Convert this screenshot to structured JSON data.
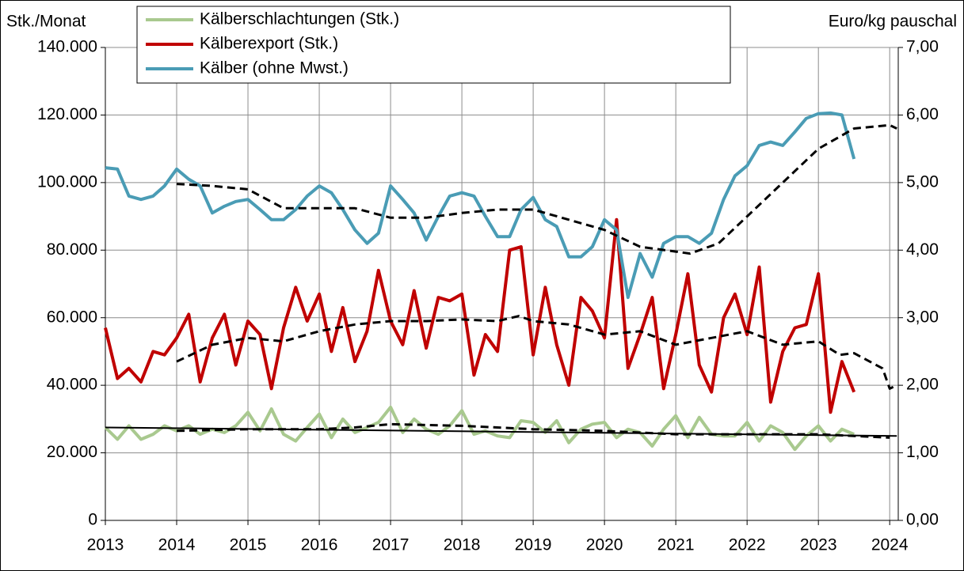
{
  "chart_data": {
    "type": "line",
    "y_label": "Stk./Monat",
    "y2_label": "Euro/kg pauschal",
    "xlim": [
      2013,
      2024.12
    ],
    "xticks": [
      2013,
      2014,
      2015,
      2016,
      2017,
      2018,
      2019,
      2020,
      2021,
      2022,
      2023,
      2024
    ],
    "ylim": [
      0,
      140000
    ],
    "yticks": [
      {
        "value": 0,
        "label": "0"
      },
      {
        "value": 20000,
        "label": "20.000"
      },
      {
        "value": 40000,
        "label": "40.000"
      },
      {
        "value": 60000,
        "label": "60.000"
      },
      {
        "value": 80000,
        "label": "80.000"
      },
      {
        "value": 100000,
        "label": "100.000"
      },
      {
        "value": 120000,
        "label": "120.000"
      },
      {
        "value": 140000,
        "label": "140.000"
      }
    ],
    "y2lim": [
      0,
      7
    ],
    "y2ticks": [
      {
        "value": 0,
        "label": "0,00"
      },
      {
        "value": 1,
        "label": "1,00"
      },
      {
        "value": 2,
        "label": "2,00"
      },
      {
        "value": 3,
        "label": "3,00"
      },
      {
        "value": 4,
        "label": "4,00"
      },
      {
        "value": 5,
        "label": "5,00"
      },
      {
        "value": 6,
        "label": "6,00"
      },
      {
        "value": 7,
        "label": "7,00"
      }
    ],
    "grid": true,
    "legend": "top",
    "x": [
      2013.0,
      2013.17,
      2013.33,
      2013.5,
      2013.67,
      2013.83,
      2014.0,
      2014.17,
      2014.33,
      2014.5,
      2014.67,
      2014.83,
      2015.0,
      2015.17,
      2015.33,
      2015.5,
      2015.67,
      2015.83,
      2016.0,
      2016.17,
      2016.33,
      2016.5,
      2016.67,
      2016.83,
      2017.0,
      2017.17,
      2017.33,
      2017.5,
      2017.67,
      2017.83,
      2018.0,
      2018.17,
      2018.33,
      2018.5,
      2018.67,
      2018.83,
      2019.0,
      2019.17,
      2019.33,
      2019.5,
      2019.67,
      2019.83,
      2020.0,
      2020.17,
      2020.33,
      2020.5,
      2020.67,
      2020.83,
      2021.0,
      2021.17,
      2021.33,
      2021.5,
      2021.67,
      2021.83,
      2022.0,
      2022.17,
      2022.33,
      2022.5,
      2022.67,
      2022.83,
      2023.0,
      2023.17,
      2023.33,
      2023.5
    ],
    "series": [
      {
        "name": "Kälberschlachtungen (Stk.)",
        "color": "#a9c98f",
        "values": [
          27500,
          24000,
          28000,
          24000,
          25500,
          28000,
          26500,
          28000,
          25500,
          27000,
          26000,
          28000,
          32000,
          26500,
          33000,
          25500,
          23500,
          27500,
          31500,
          24500,
          30000,
          26000,
          27500,
          29000,
          33500,
          26000,
          30000,
          27000,
          25500,
          28000,
          32500,
          25500,
          26500,
          25000,
          24500,
          29500,
          29000,
          26000,
          29500,
          23000,
          27000,
          28500,
          29000,
          24500,
          27000,
          26000,
          22000,
          27000,
          31000,
          24500,
          30500,
          25500,
          25000,
          25000,
          29000,
          23500,
          28000,
          26000,
          21000,
          25000,
          28000,
          23500,
          27000,
          25500
        ]
      },
      {
        "name": "Kälberexport (Stk.)",
        "color": "#c00000",
        "values": [
          57000,
          42000,
          45000,
          41000,
          50000,
          49000,
          54000,
          61000,
          41000,
          54000,
          61000,
          46000,
          59000,
          55000,
          39000,
          57000,
          69000,
          59000,
          67000,
          50000,
          63000,
          47000,
          56000,
          74000,
          59000,
          52000,
          68000,
          51000,
          66000,
          65000,
          67000,
          43000,
          55000,
          50000,
          80000,
          81000,
          49000,
          69000,
          52000,
          40000,
          66000,
          62000,
          54000,
          89000,
          45000,
          55000,
          66000,
          39000,
          55000,
          73000,
          46000,
          38000,
          60000,
          67000,
          55000,
          75000,
          35000,
          50000,
          57000,
          58000,
          73000,
          32000,
          47000,
          38000
        ]
      },
      {
        "name": "Kälber (ohne Mwst.)",
        "color": "#4a9cb5",
        "axis": "y2",
        "values": [
          5.22,
          5.2,
          4.8,
          4.75,
          4.8,
          4.95,
          5.2,
          5.05,
          4.95,
          4.55,
          4.65,
          4.72,
          4.75,
          4.6,
          4.45,
          4.45,
          4.6,
          4.8,
          4.95,
          4.85,
          4.6,
          4.3,
          4.1,
          4.25,
          4.95,
          4.75,
          4.55,
          4.15,
          4.5,
          4.8,
          4.85,
          4.8,
          4.5,
          4.2,
          4.2,
          4.6,
          4.78,
          4.45,
          4.35,
          3.9,
          3.9,
          4.05,
          4.45,
          4.3,
          3.3,
          3.95,
          3.6,
          4.1,
          4.2,
          4.2,
          4.1,
          4.25,
          4.75,
          5.1,
          5.25,
          5.55,
          5.6,
          5.55,
          5.75,
          5.95,
          6.02,
          6.03,
          6.0,
          5.35
        ]
      },
      {
        "color": "#000000",
        "dashed": true,
        "axis": "y2",
        "x": [
          2014,
          2014.5,
          2015,
          2015.5,
          2016,
          2016.5,
          2017,
          2017.5,
          2018,
          2018.5,
          2019,
          2019.5,
          2020,
          2020.5,
          2021.2,
          2021.6,
          2022,
          2022.5,
          2023,
          2023.5,
          2024,
          2024.1
        ],
        "values": [
          4.98,
          4.95,
          4.9,
          4.62,
          4.62,
          4.62,
          4.48,
          4.48,
          4.55,
          4.6,
          4.6,
          4.45,
          4.3,
          4.05,
          3.95,
          4.1,
          4.5,
          5.0,
          5.5,
          5.8,
          5.85,
          5.8
        ]
      },
      {
        "color": "#000000",
        "dashed": true,
        "x": [
          2014,
          2014.5,
          2015,
          2015.5,
          2016,
          2016.5,
          2017,
          2017.5,
          2018,
          2018.5,
          2018.8,
          2019,
          2019.5,
          2020,
          2020.5,
          2021,
          2021.5,
          2022,
          2022.5,
          2023,
          2023.3,
          2023.5,
          2023.9,
          2024,
          2024.1
        ],
        "values": [
          47000,
          52000,
          54000,
          53000,
          56000,
          58000,
          59000,
          59000,
          59500,
          59000,
          60500,
          59000,
          58000,
          55000,
          56000,
          52000,
          54000,
          56000,
          52000,
          53000,
          49000,
          49500,
          45000,
          39000,
          40000
        ]
      },
      {
        "color": "#000000",
        "dashed": true,
        "x": [
          2014,
          2015,
          2016,
          2016.5,
          2017,
          2018,
          2019,
          2020,
          2021,
          2022,
          2023,
          2024
        ],
        "values": [
          26500,
          27000,
          27000,
          27500,
          28500,
          28000,
          27000,
          26500,
          25500,
          25500,
          25500,
          24500
        ]
      },
      {
        "color": "#000000",
        "x": [
          2013,
          2024.1
        ],
        "values": [
          27500,
          25000
        ]
      }
    ]
  }
}
